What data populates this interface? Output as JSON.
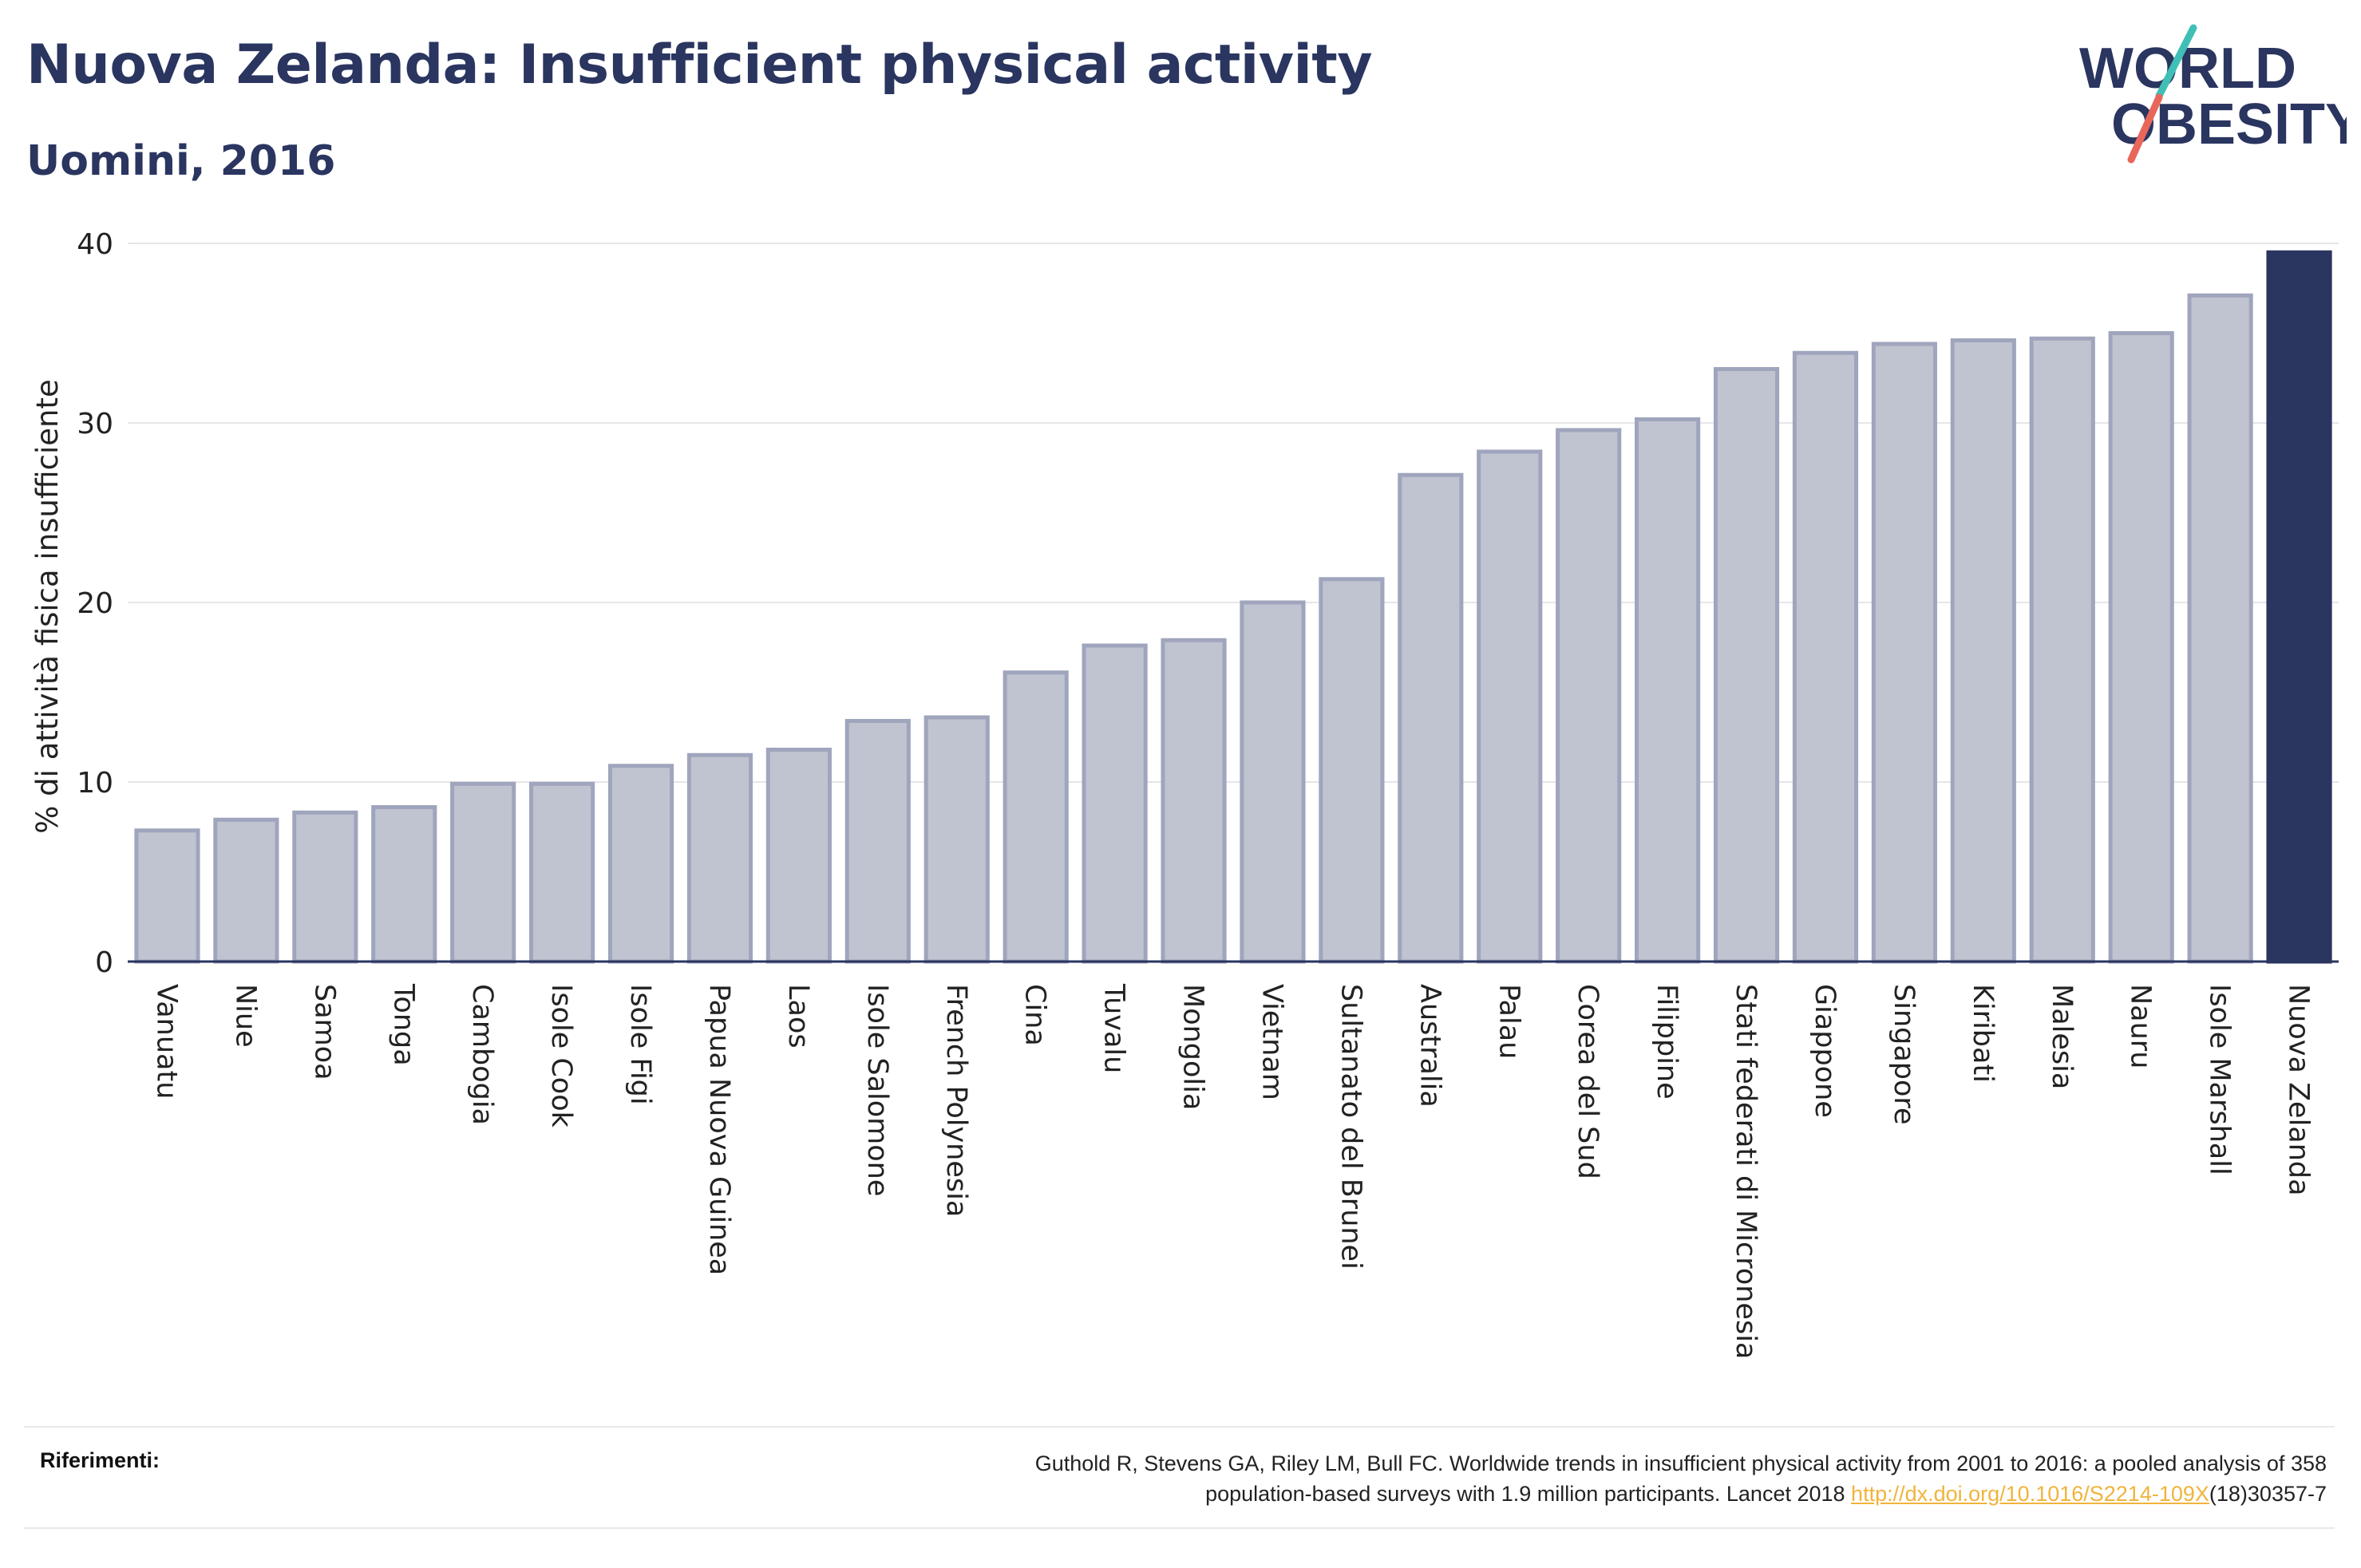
{
  "title": "Nuova Zelanda: Insufficient physical activity",
  "subtitle": "Uomini, 2016",
  "logo": {
    "line1": "WORLD",
    "line2": "OBESITY"
  },
  "references": {
    "label": "Riferimenti:",
    "text_line1": "Guthold R, Stevens GA, Riley LM, Bull FC. Worldwide trends in insufficient physical activity from 2001 to 2016: a pooled analysis of 358",
    "text_line2_before": "population-based surveys with 1.9 million participants. Lancet 2018 ",
    "link": "http://dx.doi.org/10.1016/S2214-109X",
    "text_after": "(18)30357-7"
  },
  "chart_data": {
    "type": "bar",
    "title": "Nuova Zelanda: Insufficient physical activity",
    "subtitle": "Uomini, 2016",
    "ylabel": "% di attività fisica insufficiente",
    "ylim": [
      0,
      40
    ],
    "yticks": [
      0,
      10,
      20,
      30,
      40
    ],
    "grid": true,
    "highlight": "Nuova Zelanda",
    "colors": {
      "bar": "#c0c3d0",
      "bar_border": "#9fa5bc",
      "highlight": "#2a3560",
      "axis": "#2a3560",
      "grid": "#e6e6ea"
    },
    "categories": [
      "Vanuatu",
      "Niue",
      "Samoa",
      "Tonga",
      "Cambogia",
      "Isole Cook",
      "Isole Figi",
      "Papua Nuova Guinea",
      "Laos",
      "Isole Salomone",
      "French Polynesia",
      "Cina",
      "Tuvalu",
      "Mongolia",
      "Vietnam",
      "Sultanato del Brunei",
      "Australia",
      "Palau",
      "Corea del Sud",
      "Filippine",
      "Stati federati di Micronesia",
      "Giappone",
      "Singapore",
      "Kiribati",
      "Malesia",
      "Nauru",
      "Isole Marshall",
      "Nuova Zelanda"
    ],
    "values": [
      7.3,
      7.9,
      8.3,
      8.6,
      9.9,
      9.9,
      10.9,
      11.5,
      11.8,
      13.4,
      13.6,
      16.1,
      17.6,
      17.9,
      20.0,
      21.3,
      27.1,
      28.4,
      29.6,
      30.2,
      33.0,
      33.9,
      34.4,
      34.6,
      34.7,
      35.0,
      37.1,
      39.5
    ]
  }
}
